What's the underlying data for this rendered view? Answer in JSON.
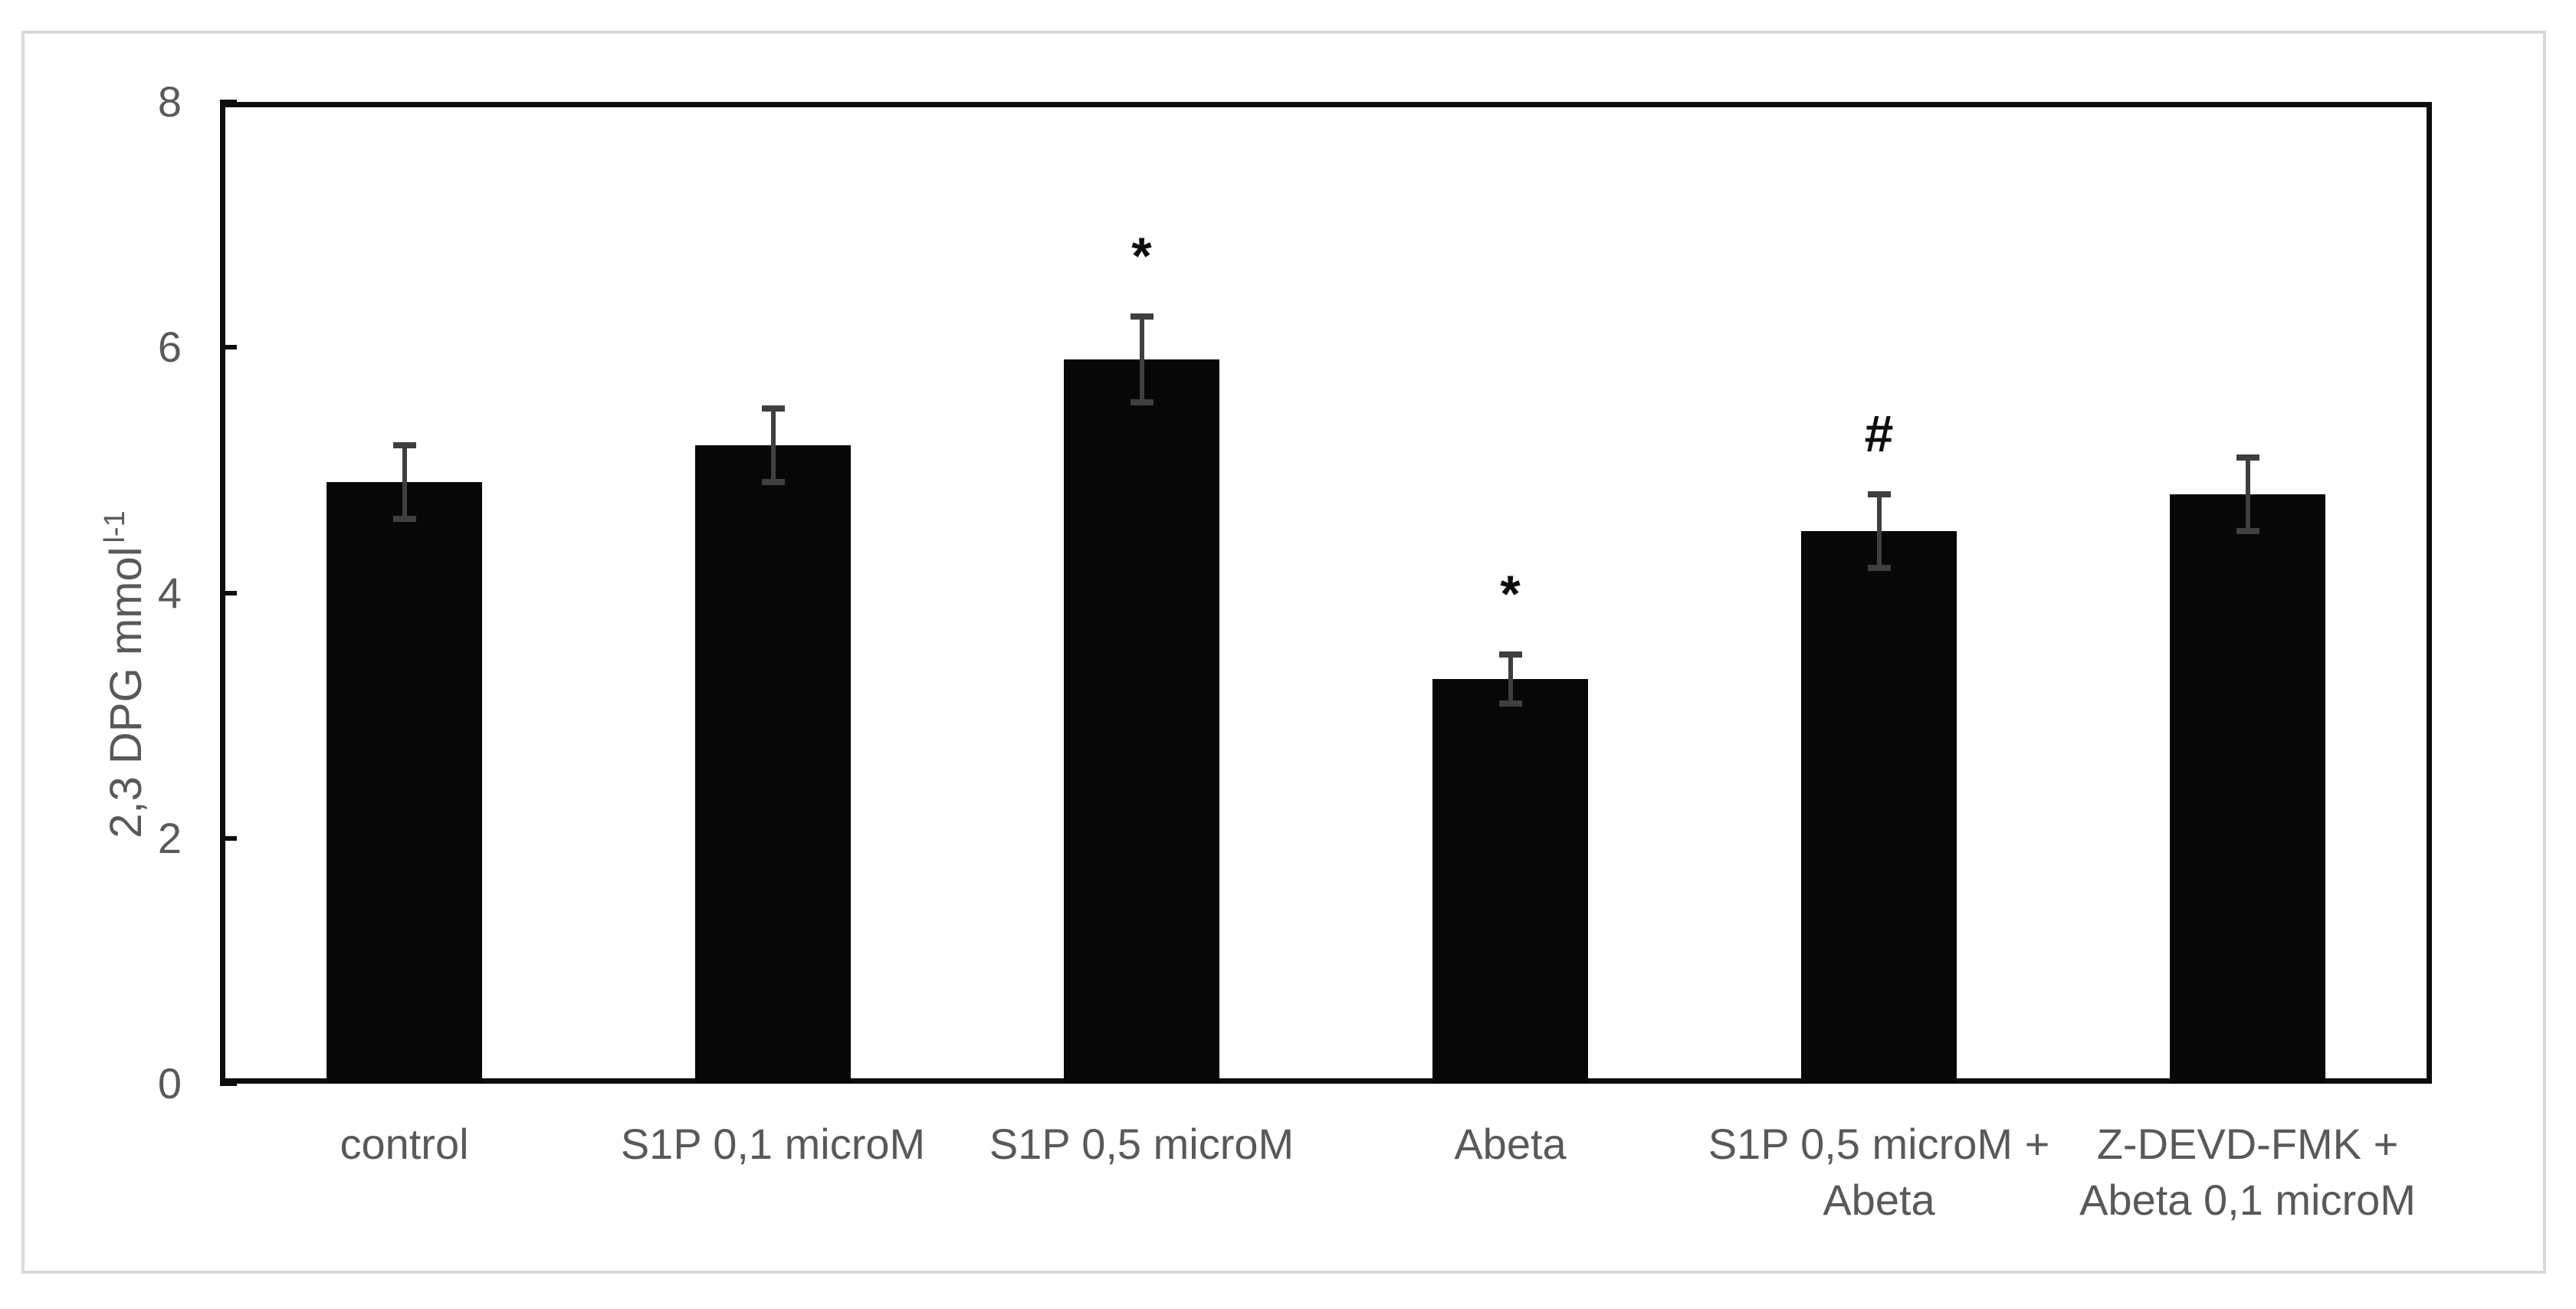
{
  "figure": {
    "background": "#ffffff",
    "border_color": "#d9d9d9"
  },
  "chart_data": {
    "type": "bar",
    "title": "",
    "ylabel": "2,3 DPG mmol",
    "ylabel_superscript": "l-1",
    "xlabel": "",
    "ylim": [
      0,
      8
    ],
    "yticks": [
      "0",
      "2",
      "4",
      "6",
      "8"
    ],
    "grid": false,
    "legend": "none",
    "bar_color": "#070707",
    "error_bar_color": "#3f3f3f",
    "axis_color": "#0d0d0d",
    "label_color": "#595959",
    "categories": [
      [
        "control"
      ],
      [
        "S1P 0,1 microM"
      ],
      [
        "S1P 0,5 microM"
      ],
      [
        "Abeta"
      ],
      [
        "S1P 0,5 microM +",
        "Abeta"
      ],
      [
        "Z-DEVD-FMK +",
        "Abeta 0,1 microM"
      ]
    ],
    "values": [
      4.9,
      5.2,
      5.9,
      3.3,
      4.5,
      4.8
    ],
    "errors": [
      0.3,
      0.3,
      0.35,
      0.2,
      0.3,
      0.3
    ],
    "annotations": [
      "",
      "",
      "*",
      "*",
      "#",
      ""
    ]
  }
}
